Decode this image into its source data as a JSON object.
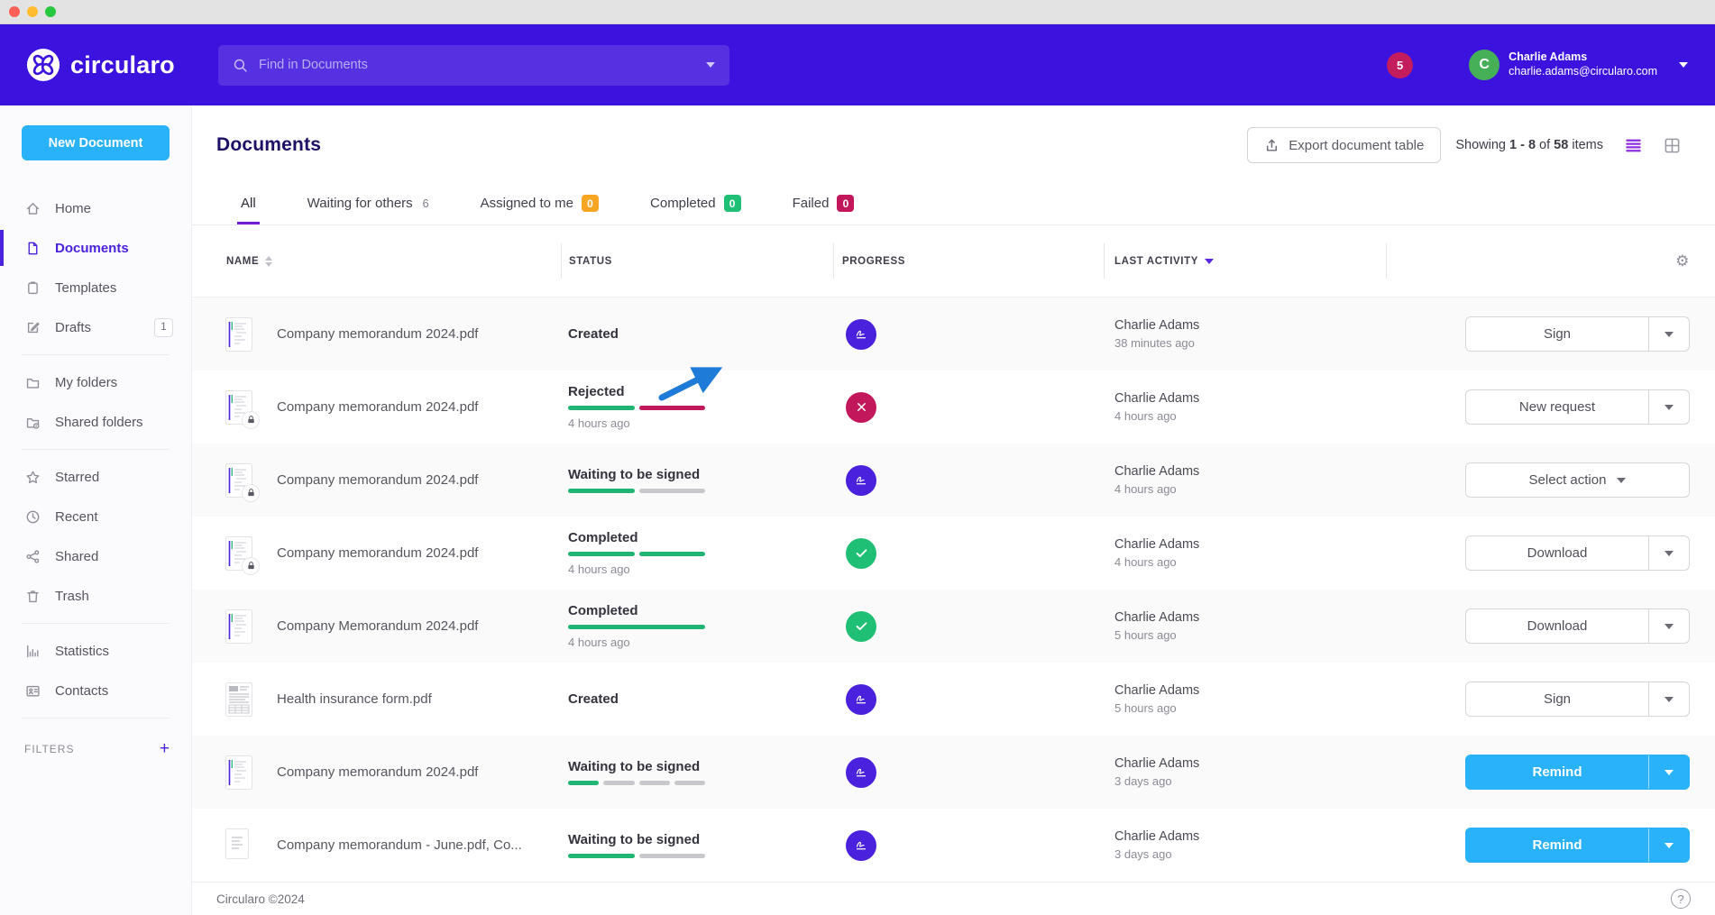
{
  "topbar": {
    "brand": "circularo",
    "search_placeholder": "Find in Documents",
    "notification_count": "5",
    "user_initial": "C",
    "user_name": "Charlie Adams",
    "user_email": "charlie.adams@circularo.com"
  },
  "sidebar": {
    "new_document": "New Document",
    "items": [
      {
        "label": "Home",
        "icon": "home-icon"
      },
      {
        "label": "Documents",
        "icon": "document-icon",
        "active": true
      },
      {
        "label": "Templates",
        "icon": "templates-icon"
      },
      {
        "label": "Drafts",
        "icon": "drafts-icon",
        "badge": "1"
      },
      {
        "label": "My folders",
        "icon": "folder-icon"
      },
      {
        "label": "Shared folders",
        "icon": "shared-folder-icon"
      },
      {
        "label": "Starred",
        "icon": "star-icon"
      },
      {
        "label": "Recent",
        "icon": "clock-icon"
      },
      {
        "label": "Shared",
        "icon": "share-icon"
      },
      {
        "label": "Trash",
        "icon": "trash-icon"
      },
      {
        "label": "Statistics",
        "icon": "statistics-icon"
      },
      {
        "label": "Contacts",
        "icon": "contacts-icon"
      }
    ],
    "filters_label": "FILTERS",
    "filters_add": "+"
  },
  "main": {
    "title": "Documents",
    "export_button": "Export document table",
    "showing": {
      "prefix": "Showing",
      "range": "1 - 8",
      "of": "of",
      "total": "58",
      "items": "items"
    },
    "tabs": [
      {
        "label": "All",
        "active": true
      },
      {
        "label": "Waiting for others",
        "count": "6",
        "badge": "plain"
      },
      {
        "label": "Assigned to me",
        "count": "0",
        "badge": "orange"
      },
      {
        "label": "Completed",
        "count": "0",
        "badge": "green"
      },
      {
        "label": "Failed",
        "count": "0",
        "badge": "crimson"
      }
    ],
    "columns": [
      {
        "label": "NAME",
        "sort": "both"
      },
      {
        "label": "STATUS"
      },
      {
        "label": "PROGRESS"
      },
      {
        "label": "LAST ACTIVITY",
        "sort": "desc"
      }
    ],
    "rows": [
      {
        "name": "Company memorandum 2024.pdf",
        "status": "Created",
        "status_time": "",
        "segments": [],
        "progress_icon": "sign",
        "activity_user": "Charlie Adams",
        "activity_time": "38 minutes ago",
        "action_label": "Sign",
        "action_style": "white",
        "split": true,
        "locked": false,
        "thumb": "doc"
      },
      {
        "name": "Company memorandum 2024.pdf",
        "status": "Rejected",
        "status_time": "4 hours ago",
        "segments": [
          "green",
          "crimson"
        ],
        "progress_icon": "rejected",
        "activity_user": "Charlie Adams",
        "activity_time": "4 hours ago",
        "action_label": "New request",
        "action_style": "white",
        "split": true,
        "locked": true,
        "thumb": "doc"
      },
      {
        "name": "Company memorandum 2024.pdf",
        "status": "Waiting to be signed",
        "status_time": "",
        "segments": [
          "green",
          "gray"
        ],
        "progress_icon": "sign",
        "activity_user": "Charlie Adams",
        "activity_time": "4 hours ago",
        "action_label": "Select action",
        "action_style": "white",
        "split": false,
        "locked": true,
        "thumb": "doc"
      },
      {
        "name": "Company memorandum 2024.pdf",
        "status": "Completed",
        "status_time": "4 hours ago",
        "segments": [
          "green",
          "green"
        ],
        "progress_icon": "check",
        "activity_user": "Charlie Adams",
        "activity_time": "4 hours ago",
        "action_label": "Download",
        "action_style": "white",
        "split": true,
        "locked": true,
        "thumb": "doc"
      },
      {
        "name": "Company Memorandum 2024.pdf",
        "status": "Completed",
        "status_time": "4 hours ago",
        "segments": [
          "green"
        ],
        "progress_icon": "check",
        "activity_user": "Charlie Adams",
        "activity_time": "5 hours ago",
        "action_label": "Download",
        "action_style": "white",
        "split": true,
        "locked": false,
        "thumb": "doc"
      },
      {
        "name": "Health insurance form.pdf",
        "status": "Created",
        "status_time": "",
        "segments": [],
        "progress_icon": "sign",
        "activity_user": "Charlie Adams",
        "activity_time": "5 hours ago",
        "action_label": "Sign",
        "action_style": "white",
        "split": true,
        "locked": false,
        "thumb": "form"
      },
      {
        "name": "Company memorandum 2024.pdf",
        "status": "Waiting to be signed",
        "status_time": "",
        "segments": [
          "green",
          "gray",
          "gray",
          "gray"
        ],
        "progress_icon": "sign",
        "activity_user": "Charlie Adams",
        "activity_time": "3 days ago",
        "action_label": "Remind",
        "action_style": "blue",
        "split": true,
        "locked": false,
        "thumb": "doc"
      },
      {
        "name": "Company memorandum - June.pdf, Co...",
        "status": "Waiting to be signed",
        "status_time": "",
        "segments": [
          "green",
          "gray"
        ],
        "progress_icon": "sign",
        "activity_user": "Charlie Adams",
        "activity_time": "3 days ago",
        "action_label": "Remind",
        "action_style": "blue",
        "split": true,
        "locked": false,
        "thumb": "plain"
      }
    ],
    "footer": {
      "copyright": "Circularo ©2024",
      "help": "?"
    }
  },
  "colors": {
    "primary_purple": "#3c13de",
    "accent_purple": "#4a21dd",
    "action_blue": "#29b2f8",
    "progress_green": "#21b573",
    "crimson": "#c2185b",
    "badge_orange": "#f6a623",
    "badge_green": "#1fbf75",
    "title_navy": "#1c1166",
    "annotation_arrow_blue": "#1e7bd7"
  }
}
